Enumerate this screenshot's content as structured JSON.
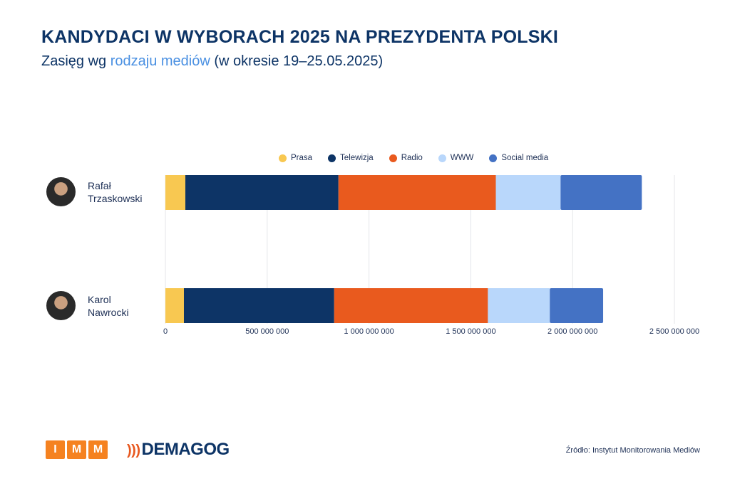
{
  "title": "KANDYDACI W WYBORACH 2025 NA PREZYDENTA POLSKI",
  "subtitle": {
    "pre": "Zasięg wg ",
    "highlight": "rodzaju mediów",
    "post": " (w okresie 19–25.05.2025)"
  },
  "chart_data": {
    "type": "bar",
    "orientation": "horizontal",
    "stacked": true,
    "categories": [
      "Rafał Trzaskowski",
      "Karol Nawrocki"
    ],
    "category_lines": [
      [
        "Rafał",
        "Trzaskowski"
      ],
      [
        "Karol",
        "Nawrocki"
      ]
    ],
    "series": [
      {
        "name": "Prasa",
        "color": "#f8c851",
        "values": [
          98000000,
          91000000
        ]
      },
      {
        "name": "Telewizja",
        "color": "#0d3466",
        "values": [
          752000000,
          738000000
        ]
      },
      {
        "name": "Radio",
        "color": "#e95a1e",
        "values": [
          773000000,
          755000000
        ]
      },
      {
        "name": "WWW",
        "color": "#b9d7fb",
        "values": [
          318000000,
          304000000
        ]
      },
      {
        "name": "Social media",
        "color": "#4472c4",
        "values": [
          399000000,
          262000000
        ]
      }
    ],
    "xlim": [
      0,
      2500000000
    ],
    "xticks": [
      0,
      500000000,
      1000000000,
      1500000000,
      2000000000,
      2500000000
    ],
    "xtick_labels": [
      "0",
      "500 000 000",
      "1 000 000 000",
      "1 500 000 000",
      "2 000 000 000",
      "2 500 000 000"
    ],
    "grid": true,
    "legend": "top"
  },
  "footer": {
    "source": "Źródło: Instytut Monitorowania Mediów",
    "logo_imm": [
      "I",
      "M",
      "M"
    ],
    "logo_demagog": "DEMAGOG"
  }
}
